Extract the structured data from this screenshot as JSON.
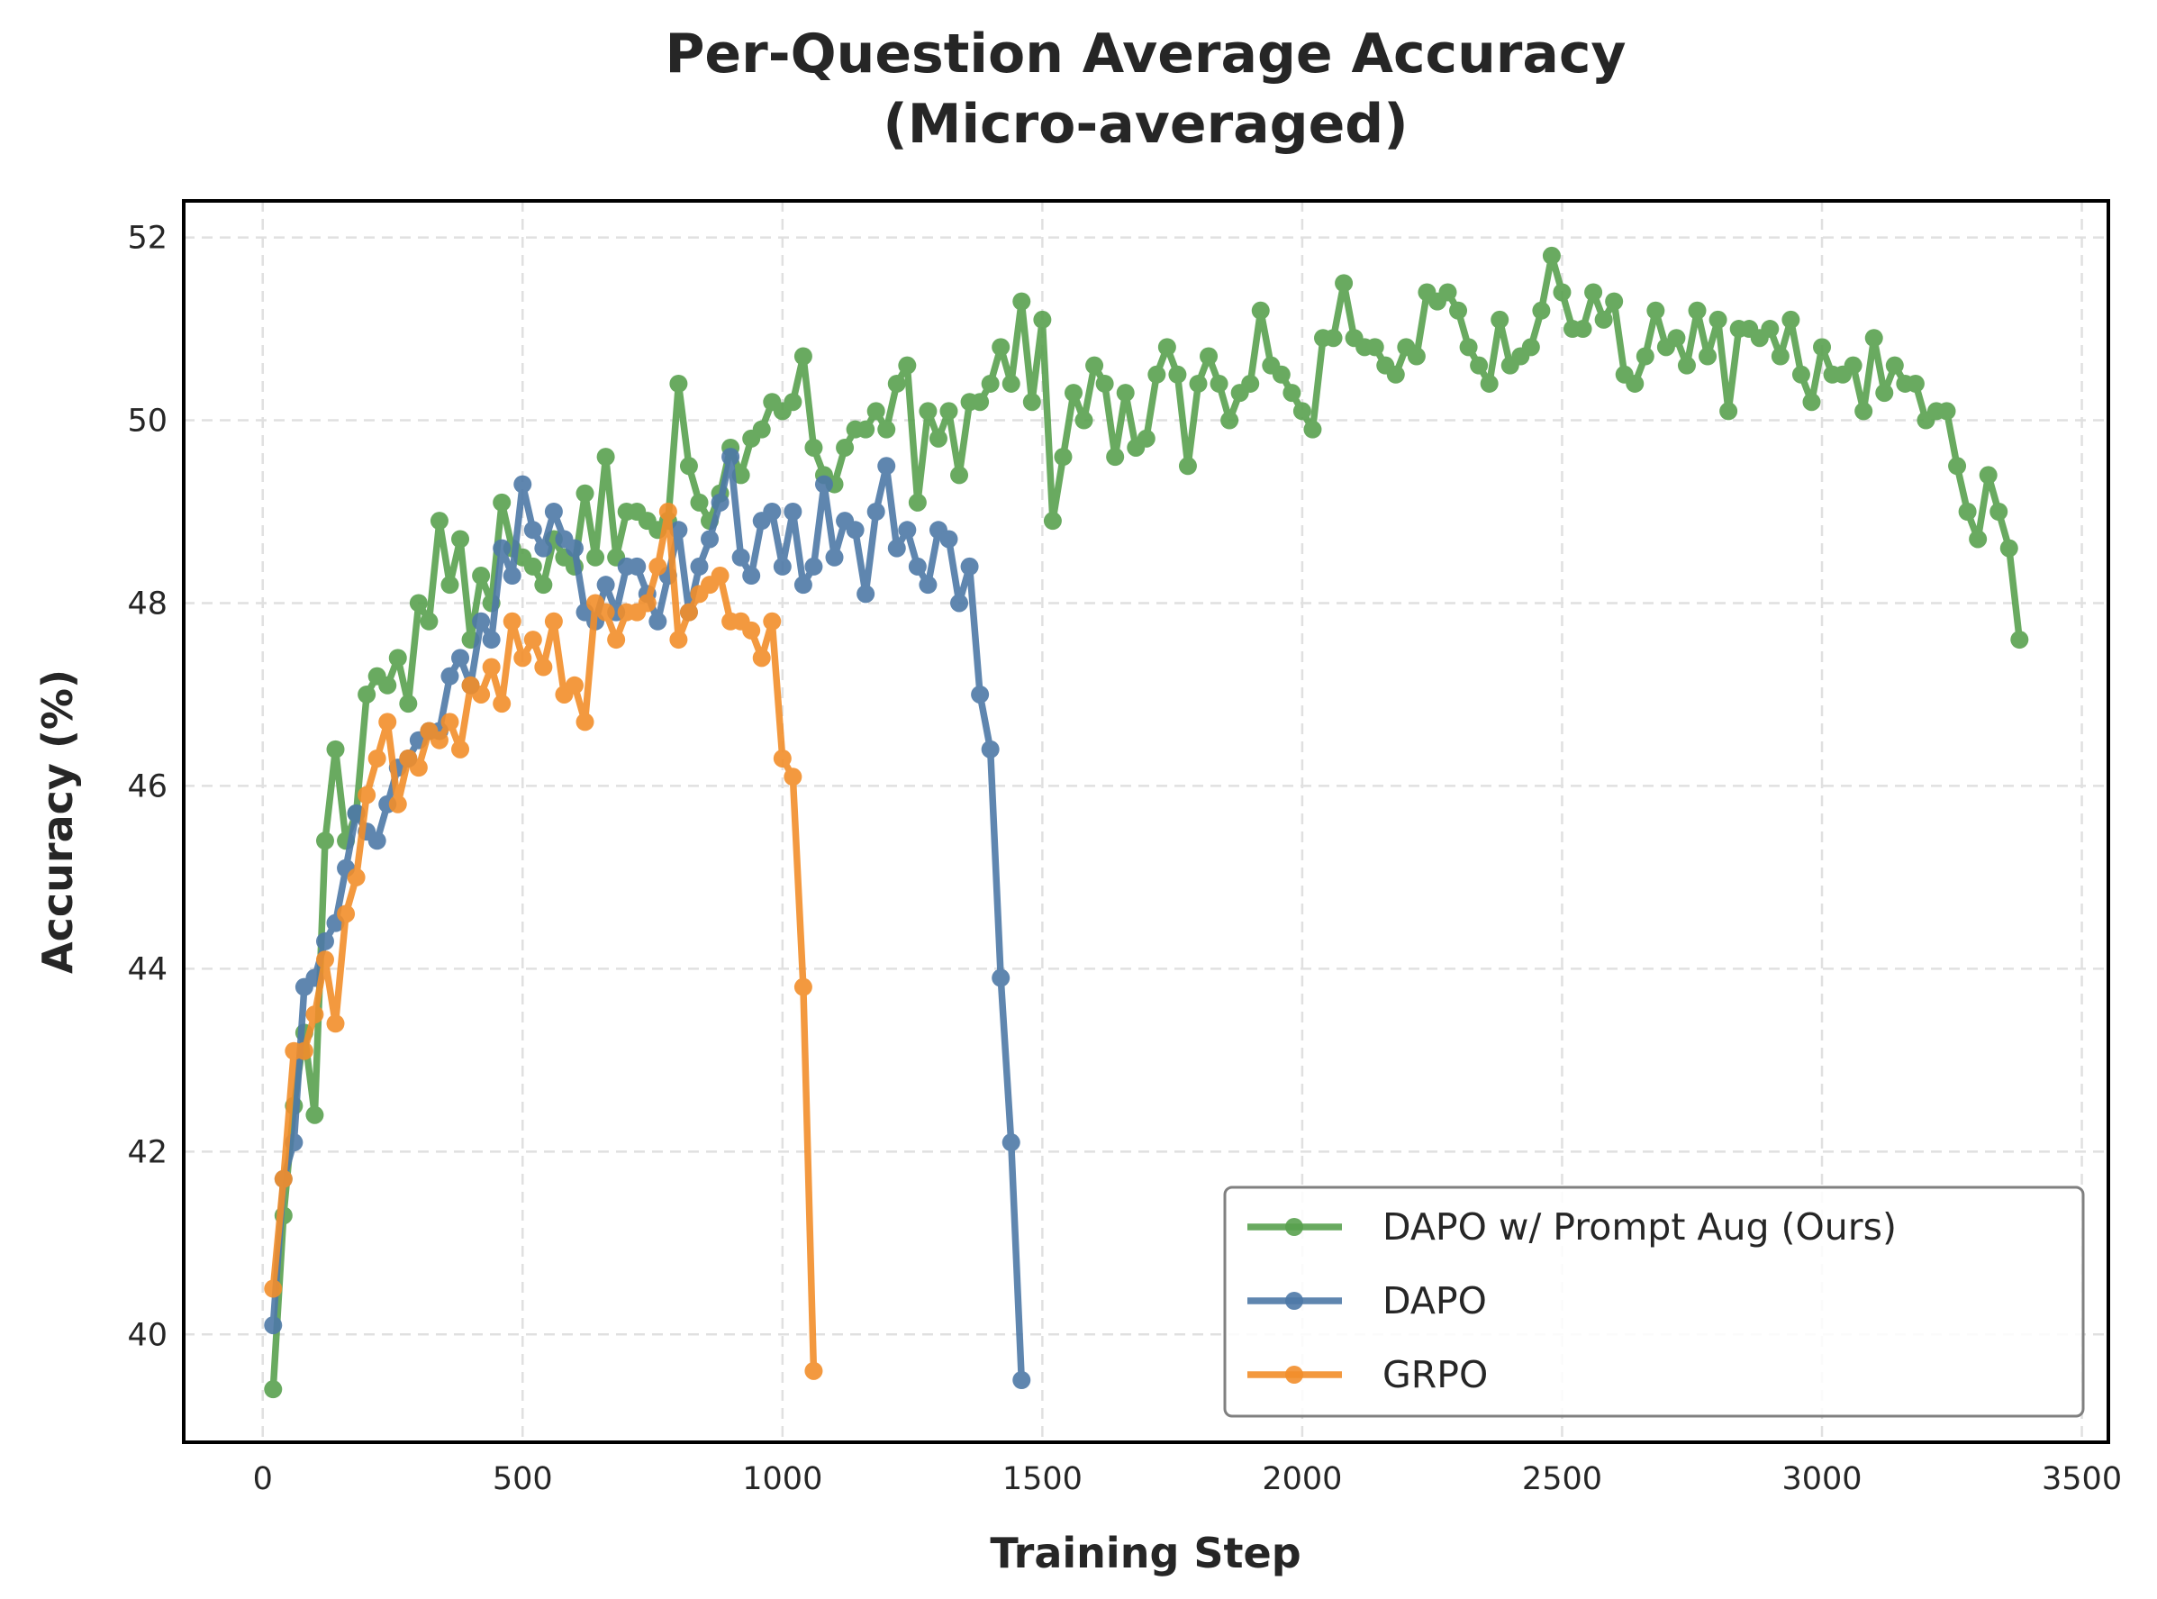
{
  "chart_data": {
    "type": "line",
    "title": "Per-Question Average Accuracy",
    "subtitle": "(Micro-averaged)",
    "xlabel": "Training Step",
    "ylabel": "Accuracy (%)",
    "xlim": [
      -152,
      3551
    ],
    "ylim": [
      38.82,
      52.4
    ],
    "xticks": [
      0,
      500,
      1000,
      1500,
      2000,
      2500,
      3000,
      3500
    ],
    "yticks": [
      40,
      42,
      44,
      46,
      48,
      50,
      52
    ],
    "grid": true,
    "legend_position": "lower-right",
    "markers": "circle",
    "series": [
      {
        "name": "DAPO w/ Prompt Aug (Ours)",
        "color": "#59a14f",
        "x_start": 20,
        "x_step": 20,
        "values": [
          39.4,
          41.3,
          42.5,
          43.3,
          42.4,
          45.4,
          46.4,
          45.4,
          45.7,
          47.0,
          47.2,
          47.1,
          47.4,
          46.9,
          48.0,
          47.8,
          48.9,
          48.2,
          48.7,
          47.6,
          48.3,
          48.0,
          49.1,
          48.6,
          48.5,
          48.4,
          48.2,
          48.7,
          48.5,
          48.4,
          49.2,
          48.5,
          49.6,
          48.5,
          49.0,
          49.0,
          48.9,
          48.8,
          48.9,
          50.4,
          49.5,
          49.1,
          48.9,
          49.2,
          49.7,
          49.4,
          49.8,
          49.9,
          50.2,
          50.1,
          50.2,
          50.7,
          49.7,
          49.4,
          49.3,
          49.7,
          49.9,
          49.9,
          50.1,
          49.9,
          50.4,
          50.6,
          49.1,
          50.1,
          49.8,
          50.1,
          49.4,
          50.2,
          50.2,
          50.4,
          50.8,
          50.4,
          51.3,
          50.2,
          51.1,
          48.9,
          49.6,
          50.3,
          50.0,
          50.6,
          50.4,
          49.6,
          50.3,
          49.7,
          49.8,
          50.5,
          50.8,
          50.5,
          49.5,
          50.4,
          50.7,
          50.4,
          50.0,
          50.3,
          50.4,
          51.2,
          50.6,
          50.5,
          50.3,
          50.1,
          49.9,
          50.9,
          50.9,
          51.5,
          50.9,
          50.8,
          50.8,
          50.6,
          50.5,
          50.8,
          50.7,
          51.4,
          51.3,
          51.4,
          51.2,
          50.8,
          50.6,
          50.4,
          51.1,
          50.6,
          50.7,
          50.8,
          51.2,
          51.8,
          51.4,
          51.0,
          51.0,
          51.4,
          51.1,
          51.3,
          50.5,
          50.4,
          50.7,
          51.2,
          50.8,
          50.9,
          50.6,
          51.2,
          50.7,
          51.1,
          50.1,
          51.0,
          51.0,
          50.9,
          51.0,
          50.7,
          51.1,
          50.5,
          50.2,
          50.8,
          50.5,
          50.5,
          50.6,
          50.1,
          50.9,
          50.3,
          50.6,
          50.4,
          50.4,
          50.0,
          50.1,
          50.1,
          49.5,
          49.0,
          48.7,
          49.4,
          49.0,
          48.6,
          47.6
        ]
      },
      {
        "name": "DAPO",
        "color": "#4e79a7",
        "x_start": 20,
        "x_step": 20,
        "values": [
          40.1,
          41.7,
          42.1,
          43.8,
          43.9,
          44.3,
          44.5,
          45.1,
          45.7,
          45.5,
          45.4,
          45.8,
          46.2,
          46.3,
          46.5,
          46.6,
          46.6,
          47.2,
          47.4,
          47.1,
          47.8,
          47.6,
          48.6,
          48.3,
          49.3,
          48.8,
          48.6,
          49.0,
          48.7,
          48.6,
          47.9,
          47.8,
          48.2,
          47.9,
          48.4,
          48.4,
          48.1,
          47.8,
          48.3,
          48.8,
          47.9,
          48.4,
          48.7,
          49.1,
          49.6,
          48.5,
          48.3,
          48.9,
          49.0,
          48.4,
          49.0,
          48.2,
          48.4,
          49.3,
          48.5,
          48.9,
          48.8,
          48.1,
          49.0,
          49.5,
          48.6,
          48.8,
          48.4,
          48.2,
          48.8,
          48.7,
          48.0,
          48.4,
          47.0,
          46.4,
          43.9,
          42.1,
          39.5
        ]
      },
      {
        "name": "GRPO",
        "color": "#f28e2b",
        "x_start": 20,
        "x_step": 20,
        "values": [
          40.5,
          41.7,
          43.1,
          43.1,
          43.5,
          44.1,
          43.4,
          44.6,
          45.0,
          45.9,
          46.3,
          46.7,
          45.8,
          46.3,
          46.2,
          46.6,
          46.5,
          46.7,
          46.4,
          47.1,
          47.0,
          47.3,
          46.9,
          47.8,
          47.4,
          47.6,
          47.3,
          47.8,
          47.0,
          47.1,
          46.7,
          48.0,
          47.9,
          47.6,
          47.9,
          47.9,
          48.0,
          48.4,
          49.0,
          47.6,
          47.9,
          48.1,
          48.2,
          48.3,
          47.8,
          47.8,
          47.7,
          47.4,
          47.8,
          46.3,
          46.1,
          43.8,
          39.6
        ]
      }
    ]
  }
}
